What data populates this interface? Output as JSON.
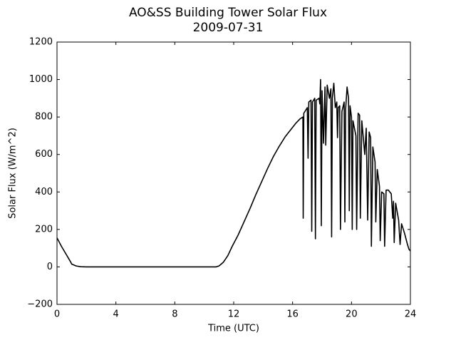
{
  "chart_data": {
    "type": "line",
    "title": "AO&SS Building Tower Solar Flux",
    "subtitle": "2009-07-31",
    "x_label": "Time (UTC)",
    "y_label": "Solar Flux (W/m^2)",
    "xlim": [
      0,
      24
    ],
    "xticks": [
      0,
      4,
      8,
      12,
      16,
      20,
      24
    ],
    "ylim": [
      -200,
      1200
    ],
    "yticks": [
      {
        "value": -200,
        "label": "−200"
      },
      0,
      200,
      400,
      600,
      800,
      1000,
      1200
    ],
    "series": [
      {
        "color": "#000000",
        "x": [
          0,
          0.3,
          0.6,
          0.9,
          1.0,
          1.3,
          1.6,
          2,
          4,
          6,
          8,
          10,
          10.8,
          11,
          11.3,
          11.6,
          11.9,
          12.3,
          12.7,
          13.1,
          13.5,
          13.9,
          14.3,
          14.7,
          15.1,
          15.5,
          15.9,
          16.2,
          16.5,
          16.7,
          16.72,
          16.76,
          17.0,
          17.05,
          17.1,
          17.25,
          17.3,
          17.35,
          17.5,
          17.55,
          17.6,
          17.8,
          17.85,
          17.9,
          17.95,
          18.0,
          18.1,
          18.2,
          18.25,
          18.35,
          18.5,
          18.6,
          18.65,
          18.7,
          18.8,
          18.9,
          19.0,
          19.05,
          19.1,
          19.2,
          19.25,
          19.35,
          19.5,
          19.55,
          19.6,
          19.7,
          19.8,
          19.85,
          19.9,
          20.0,
          20.05,
          20.1,
          20.3,
          20.35,
          20.45,
          20.55,
          20.6,
          20.7,
          20.9,
          21.0,
          21.1,
          21.2,
          21.3,
          21.35,
          21.45,
          21.6,
          21.65,
          21.75,
          21.9,
          21.95,
          22.05,
          22.2,
          22.25,
          22.35,
          22.5,
          22.7,
          22.8,
          22.85,
          22.9,
          23.0,
          23.2,
          23.3,
          23.4,
          23.6,
          23.8,
          23.9,
          24.0
        ],
        "values": [
          155,
          110,
          70,
          30,
          15,
          5,
          1,
          0,
          0,
          0,
          0,
          0,
          0,
          5,
          25,
          60,
          110,
          170,
          240,
          310,
          385,
          455,
          525,
          590,
          645,
          695,
          735,
          765,
          790,
          800,
          260,
          820,
          850,
          580,
          880,
          890,
          190,
          880,
          900,
          150,
          890,
          900,
          870,
          1000,
          220,
          940,
          660,
          960,
          650,
          970,
          900,
          950,
          160,
          900,
          980,
          850,
          880,
          690,
          850,
          860,
          200,
          830,
          880,
          240,
          840,
          960,
          900,
          300,
          860,
          800,
          200,
          780,
          700,
          200,
          820,
          810,
          260,
          780,
          600,
          740,
          250,
          720,
          690,
          110,
          640,
          560,
          240,
          520,
          430,
          140,
          400,
          390,
          110,
          410,
          410,
          390,
          260,
          350,
          130,
          340,
          250,
          120,
          230,
          180,
          120,
          95,
          85
        ]
      }
    ]
  }
}
